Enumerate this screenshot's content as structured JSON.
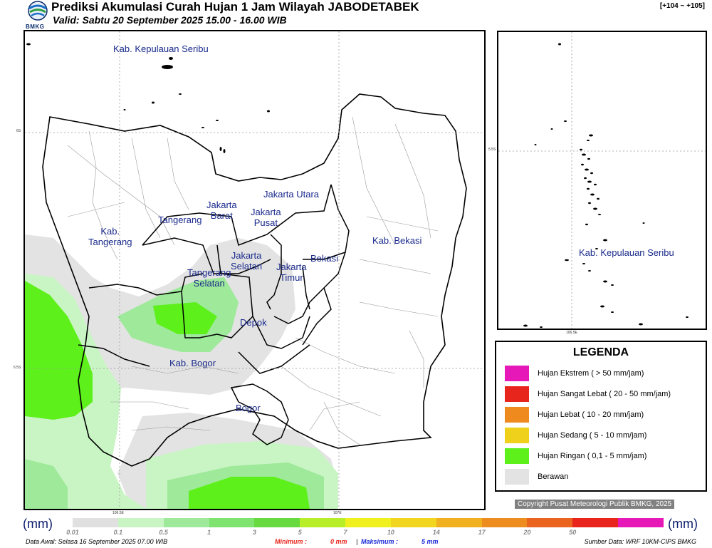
{
  "header": {
    "title": "Prediksi Akumulasi Curah Hujan 1 Jam Wilayah JABODETABEK",
    "subtitle": "Valid: Sabtu 20 September 2025 15.00 - 16.00 WIB",
    "range": "[+104 ~ +105]",
    "logo_text": "BMKG"
  },
  "main_map": {
    "labels": {
      "kep_seribu": "Kab. Kepulauan Seribu",
      "jakarta_utara": "Jakarta Utara",
      "jakarta_barat": "Jakarta\nBarat",
      "jakarta_pusat": "Jakarta\nPusat",
      "tangerang": "Tangerang",
      "kab_tangerang": "Kab.\nTangerang",
      "jakarta_selatan": "Jakarta\nSelatan",
      "jakarta_timur": "Jakarta\nTimur",
      "bekasi": "Bekasi",
      "kab_bekasi": "Kab. Bekasi",
      "tangerang_selatan": "Tangerang\nSelatan",
      "depok": "Depok",
      "kab_bogor": "Kab. Bogor",
      "bogor": "Bogor"
    },
    "lat_ticks": [
      "6S",
      "6.5S"
    ],
    "lon_ticks": [
      "106.5E",
      "107E"
    ]
  },
  "inset_map": {
    "label": "Kab. Kepulauan Seribu",
    "lat_tick": "5.5S",
    "lon_tick": "106.5E"
  },
  "legend": {
    "title": "LEGENDA",
    "items": [
      {
        "label": "Hujan Ekstrem ( > 50 mm/jam)",
        "color": "#e619b8"
      },
      {
        "label": "Hujan Sangat Lebat ( 20 - 50 mm/jam)",
        "color": "#e8251c"
      },
      {
        "label": "Hujan Lebat ( 10 - 20 mm/jam)",
        "color": "#ee8a1e"
      },
      {
        "label": "Hujan Sedang ( 5 - 10 mm/jam)",
        "color": "#efd01b"
      },
      {
        "label": "Hujan Ringan ( 0,1 - 5 mm/jam)",
        "color": "#5df01b"
      },
      {
        "label": "Berawan",
        "color": "#e3e3e3"
      }
    ]
  },
  "copyright": "Copyright Pusat Meteorologi Publik BMKG, 2025",
  "colorbar": {
    "unit_left": "(mm)",
    "unit_right": "(mm)",
    "ticks": [
      "0.01",
      "0.1",
      "0.5",
      "1",
      "3",
      "5",
      "7",
      "10",
      "14",
      "17",
      "20",
      "50"
    ],
    "colors": [
      "#e0e0e0",
      "#c9f5c4",
      "#9ee99a",
      "#7ee36f",
      "#66da3e",
      "#b7ee28",
      "#f0f01e",
      "#f2d51e",
      "#f0b01f",
      "#ee8d1f",
      "#ea631f",
      "#e8241c",
      "#e619b8"
    ]
  },
  "footer": {
    "data_awal": "Data Awal: Selasa 16 September 2025 07.00 WIB",
    "minimum_label": "Minimum :",
    "minimum_value": "0 mm",
    "separator": "|",
    "maksimum_label": "Maksimum :",
    "maksimum_value": "5 mm",
    "sumber": "Sumber Data: WRF 10KM-CIPS BMKG"
  }
}
